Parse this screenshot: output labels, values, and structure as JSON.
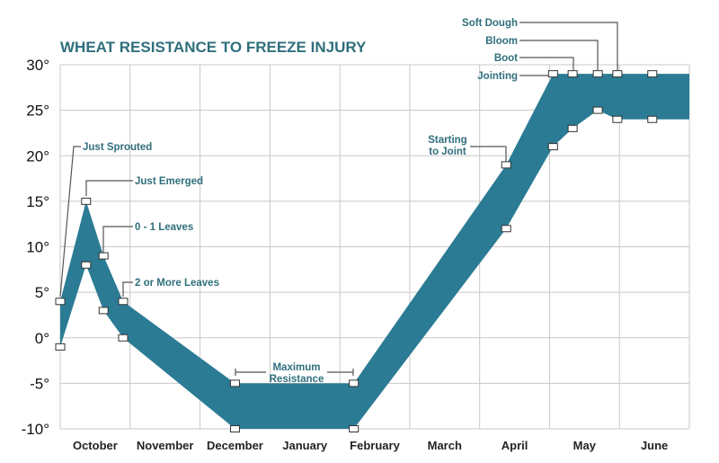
{
  "chart_data": {
    "type": "area",
    "title": "WHEAT RESISTANCE TO FREEZE INJURY",
    "xlabel": "",
    "ylabel": "",
    "categories": [
      "October",
      "November",
      "December",
      "January",
      "February",
      "March",
      "April",
      "May",
      "June"
    ],
    "yticks": [
      "30°",
      "25°",
      "20°",
      "15°",
      "10°",
      "5°",
      "0°",
      "-5°",
      "-10°"
    ],
    "ytick_values": [
      30,
      25,
      20,
      15,
      10,
      5,
      0,
      -5,
      -10
    ],
    "ylim": [
      -10,
      30
    ],
    "xlim_months": [
      0,
      9
    ],
    "grid": true,
    "band_color": "#2b7b94",
    "label_color": "#2f6f7c",
    "series": [
      {
        "role": "upper",
        "x": [
          0,
          0.37,
          0.62,
          0.9,
          2.5,
          4.2,
          6.38,
          7.05,
          7.33,
          7.69,
          7.97,
          8.47,
          9
        ],
        "values": [
          4,
          15,
          9,
          4,
          -5,
          -5,
          19,
          29,
          29,
          29,
          29,
          29,
          29
        ]
      },
      {
        "role": "lower",
        "x": [
          0,
          0.37,
          0.62,
          0.9,
          2.5,
          4.2,
          6.38,
          7.05,
          7.33,
          7.69,
          7.97,
          8.47,
          9
        ],
        "values": [
          -1,
          8,
          3,
          0,
          -10,
          -10,
          12,
          21,
          23,
          25,
          24,
          24,
          24
        ]
      }
    ],
    "annotations": [
      {
        "text": "Just Sprouted"
      },
      {
        "text": "Just Emerged"
      },
      {
        "text": "0 - 1 Leaves"
      },
      {
        "text": "2 or More Leaves"
      },
      {
        "text": "Maximum",
        "text2": "Resistance"
      },
      {
        "text": "Starting",
        "text2": "to Joint"
      },
      {
        "text": "Jointing"
      },
      {
        "text": "Boot"
      },
      {
        "text": "Bloom"
      },
      {
        "text": "Soft Dough"
      }
    ]
  }
}
